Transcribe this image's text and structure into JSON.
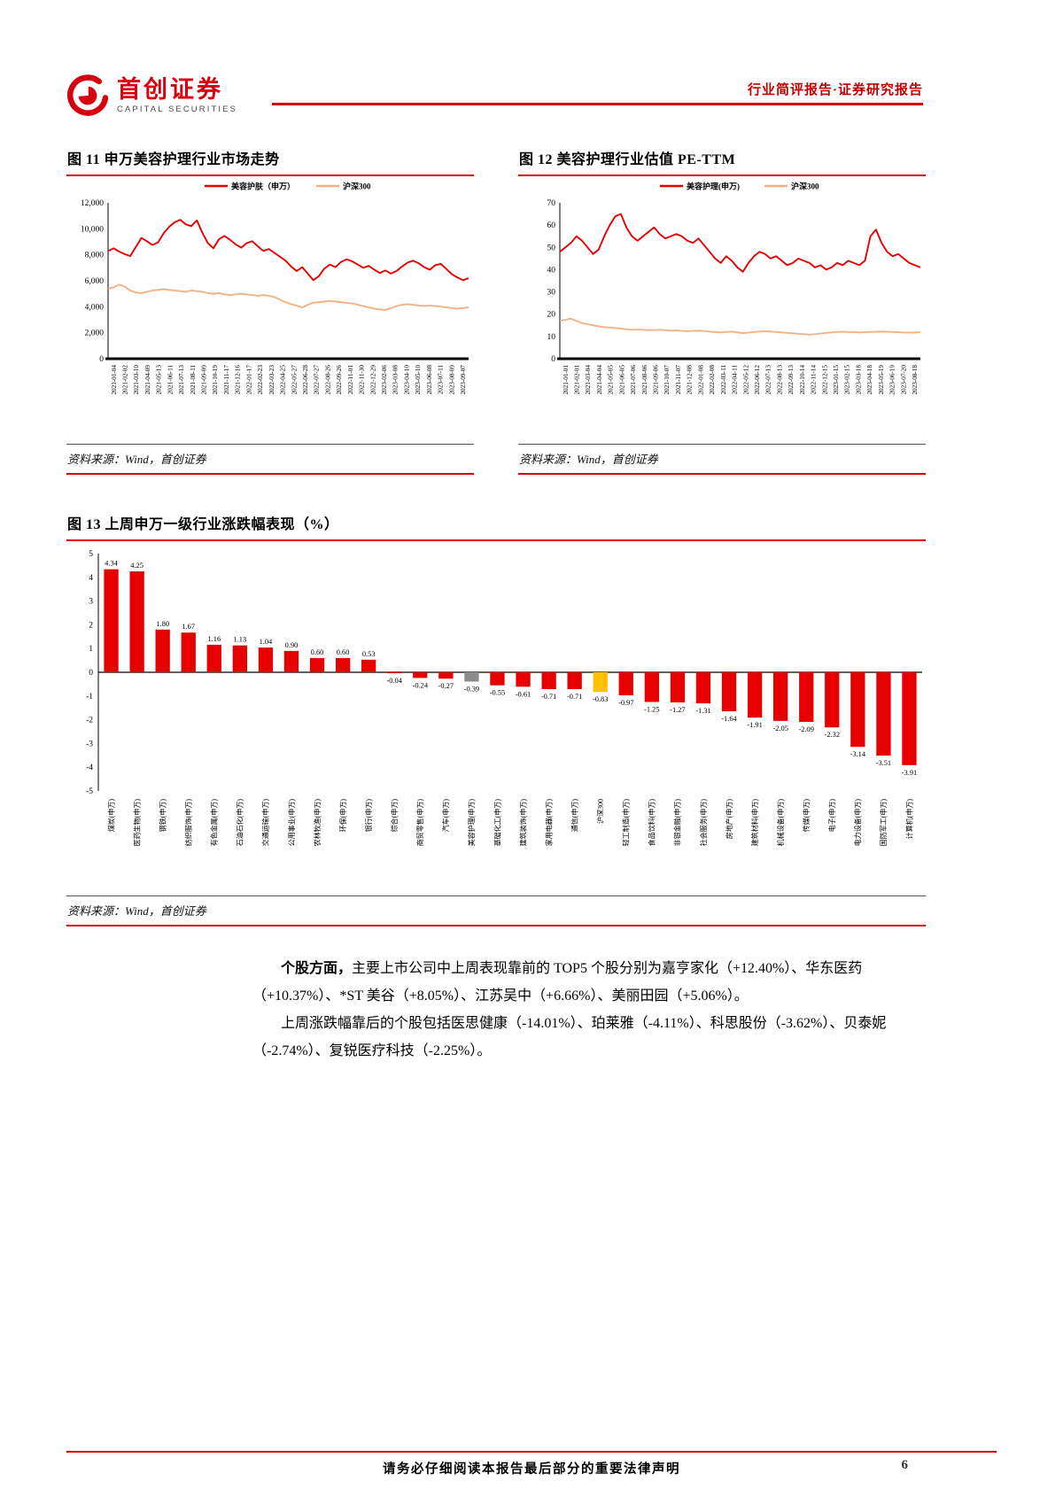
{
  "header": {
    "logo_cn": "首创证券",
    "logo_en": "CAPITAL SECURITIES",
    "report_type": "行业简评报告·证券研究报告"
  },
  "fig11": {
    "caption": "图 11 申万美容护理行业市场走势",
    "source": "资料来源：Wind，首创证券"
  },
  "fig12": {
    "caption": "图 12 美容护理行业估值 PE-TTM",
    "source": "资料来源：Wind，首创证券"
  },
  "fig13": {
    "caption": "图 13 上周申万一级行业涨跌幅表现（%）",
    "source": "资料来源：Wind，首创证券"
  },
  "body": {
    "para1_lead": "个股方面，",
    "para1_rest": "主要上市公司中上周表现靠前的 TOP5 个股分别为嘉亨家化（+12.40%）、华东医药（+10.37%）、*ST 美谷（+8.05%）、江苏吴中（+6.66%）、美丽田园（+5.06%）。",
    "para2": "上周涨跌幅靠后的个股包括医思健康（-14.01%）、珀莱雅（-4.11%）、科思股份（-3.62%）、贝泰妮（-2.74%）、复锐医疗科技（-2.25%）。"
  },
  "footer": {
    "disclaimer": "请务必仔细阅读本报告最后部分的重要法律声明",
    "page_number": "6"
  },
  "chart_data": [
    {
      "type": "line",
      "title": "申万美容护理行业市场走势",
      "ylim": [
        0,
        12000
      ],
      "yticks": [
        "0",
        "2,000",
        "4,000",
        "6,000",
        "8,000",
        "10,000",
        "12,000"
      ],
      "x_labels": [
        "2021-01-04",
        "2021-02-02",
        "2021-03-10",
        "2021-04-09",
        "2021-05-13",
        "2021-06-11",
        "2021-07-13",
        "2021-08-11",
        "2021-09-09",
        "2021-10-19",
        "2021-11-17",
        "2021-12-16",
        "2022-01-17",
        "2022-02-23",
        "2022-03-23",
        "2022-04-25",
        "2022-05-27",
        "2022-06-28",
        "2022-07-27",
        "2022-08-26",
        "2022-09-26",
        "2022-11-01",
        "2022-11-30",
        "2022-12-29",
        "2023-02-06",
        "2023-03-08",
        "2023-04-10",
        "2023-05-10",
        "2023-06-08",
        "2023-07-11",
        "2023-08-09",
        "2023-09-07"
      ],
      "series": [
        {
          "name": "美容护肤（申万）",
          "color": "#E60000",
          "values": [
            8300,
            8500,
            8250,
            8050,
            7900,
            8600,
            9300,
            9050,
            8750,
            8950,
            9650,
            10150,
            10500,
            10700,
            10350,
            10200,
            10650,
            9700,
            8900,
            8500,
            9200,
            9450,
            9150,
            8800,
            8550,
            8900,
            9050,
            8650,
            8300,
            8450,
            8150,
            7850,
            7550,
            7100,
            6750,
            7050,
            6550,
            6050,
            6350,
            6950,
            7250,
            7050,
            7450,
            7650,
            7500,
            7250,
            7000,
            7150,
            6850,
            6600,
            6800,
            6550,
            6750,
            7100,
            7400,
            7550,
            7350,
            7050,
            6850,
            7200,
            7300,
            6900,
            6500,
            6250,
            6050,
            6200
          ]
        },
        {
          "name": "沪深300",
          "color": "#F4B183",
          "values": [
            5400,
            5500,
            5700,
            5550,
            5250,
            5100,
            5050,
            5150,
            5250,
            5300,
            5350,
            5300,
            5250,
            5200,
            5150,
            5250,
            5200,
            5150,
            5050,
            5000,
            5050,
            4950,
            4900,
            4950,
            5000,
            4950,
            4900,
            4850,
            4900,
            4850,
            4750,
            4550,
            4350,
            4200,
            4100,
            3950,
            4150,
            4300,
            4350,
            4400,
            4450,
            4400,
            4350,
            4300,
            4250,
            4150,
            4050,
            3950,
            3850,
            3800,
            3750,
            3900,
            4050,
            4150,
            4200,
            4150,
            4100,
            4050,
            4100,
            4050,
            4000,
            3950,
            3900,
            3850,
            3900,
            3950
          ]
        }
      ],
      "legend_position": "top",
      "grid": false
    },
    {
      "type": "line",
      "title": "美容护理行业估值 PE-TTM",
      "ylim": [
        0,
        70
      ],
      "yticks": [
        "0",
        "10",
        "20",
        "30",
        "40",
        "50",
        "60",
        "70"
      ],
      "x_labels": [
        "2021-01-01",
        "2021-02-01",
        "2021-03-04",
        "2021-04-04",
        "2021-05-05",
        "2021-06-05",
        "2021-07-06",
        "2021-08-06",
        "2021-09-06",
        "2021-10-07",
        "2021-11-07",
        "2021-12-08",
        "2022-01-08",
        "2022-02-08",
        "2022-03-11",
        "2022-04-11",
        "2022-05-12",
        "2022-06-12",
        "2022-07-13",
        "2022-08-13",
        "2022-09-13",
        "2022-10-14",
        "2022-11-14",
        "2022-12-15",
        "2023-01-15",
        "2023-02-15",
        "2023-03-18",
        "2023-04-18",
        "2023-05-19",
        "2023-06-19",
        "2023-07-20",
        "2023-08-18"
      ],
      "series": [
        {
          "name": "美容护理(申万)",
          "color": "#E60000",
          "values": [
            48,
            50,
            52,
            55,
            53,
            50,
            47,
            49,
            55,
            60,
            64,
            65,
            59,
            55,
            53,
            55,
            57,
            59,
            56,
            54,
            55,
            56,
            55,
            53,
            52,
            54,
            51,
            48,
            45,
            43,
            46,
            44,
            41,
            39,
            43,
            46,
            48,
            47,
            45,
            46,
            44,
            42,
            43,
            45,
            44,
            43,
            41,
            42,
            40,
            41,
            43,
            42,
            44,
            43,
            42,
            44,
            55,
            58,
            52,
            48,
            46,
            47,
            45,
            43,
            42,
            41
          ]
        },
        {
          "name": "沪深300",
          "color": "#F4B183",
          "values": [
            17,
            17.5,
            18,
            17,
            16,
            15.5,
            15,
            14.5,
            14.2,
            14,
            13.8,
            13.5,
            13.2,
            13,
            13.1,
            13,
            12.8,
            12.9,
            13,
            12.8,
            12.6,
            12.7,
            12.5,
            12.4,
            12.5,
            12.6,
            12.4,
            12.2,
            12,
            11.8,
            12,
            12.2,
            11.8,
            11.5,
            11.7,
            12,
            12.2,
            12.3,
            12.2,
            12,
            11.8,
            11.6,
            11.4,
            11.2,
            11,
            10.8,
            11,
            11.3,
            11.6,
            11.8,
            12,
            12.1,
            12,
            11.9,
            11.8,
            11.9,
            12,
            12.1,
            12.2,
            12.1,
            12,
            11.9,
            11.8,
            11.7,
            11.8,
            11.9
          ]
        }
      ],
      "legend_position": "top",
      "grid": false
    },
    {
      "type": "bar",
      "title": "上周申万一级行业涨跌幅表现（%）",
      "ylim": [
        -5,
        5
      ],
      "ylabel": "",
      "xlabel": "",
      "bar_color": "#E60000",
      "highlight_colors": {
        "美容护理(申万)": "#8C8C8C",
        "沪深300": "#FFC000"
      },
      "categories": [
        "煤炭(申万)",
        "医药生物(申万)",
        "钢铁(申万)",
        "纺织服饰(申万)",
        "有色金属(申万)",
        "石油石化(申万)",
        "交通运输(申万)",
        "公用事业(申万)",
        "农林牧渔(申万)",
        "环保(申万)",
        "银行(申万)",
        "综合(申万)",
        "商贸零售(申万)",
        "汽车(申万)",
        "美容护理(申万)",
        "基础化工(申万)",
        "建筑装饰(申万)",
        "家用电器(申万)",
        "通信(申万)",
        "沪深300",
        "轻工制造(申万)",
        "食品饮料(申万)",
        "非银金融(申万)",
        "社会服务(申万)",
        "房地产(申万)",
        "建筑材料(申万)",
        "机械设备(申万)",
        "传媒(申万)",
        "电子(申万)",
        "电力设备(申万)",
        "国防军工(申万)",
        "计算机(申万)"
      ],
      "values": [
        4.34,
        4.25,
        1.8,
        1.67,
        1.16,
        1.13,
        1.04,
        0.9,
        0.6,
        0.6,
        0.53,
        -0.04,
        -0.24,
        -0.27,
        -0.39,
        -0.55,
        -0.61,
        -0.71,
        -0.71,
        -0.83,
        -0.97,
        -1.25,
        -1.27,
        -1.31,
        -1.64,
        -1.91,
        -2.05,
        -2.09,
        -2.32,
        -3.14,
        -3.51,
        -3.91
      ],
      "grid": false
    }
  ]
}
